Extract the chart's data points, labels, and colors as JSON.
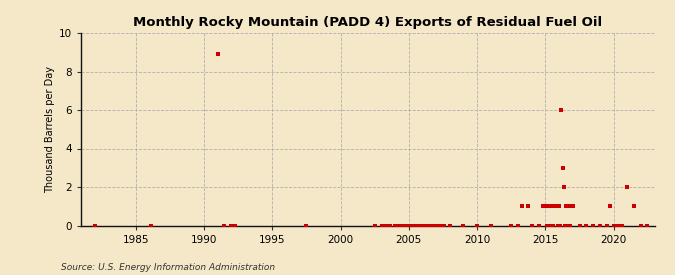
{
  "title": "Monthly Rocky Mountain (PADD 4) Exports of Residual Fuel Oil",
  "ylabel": "Thousand Barrels per Day",
  "source": "Source: U.S. Energy Information Administration",
  "background_color": "#f5e8c8",
  "plot_background_color": "#f5e8c8",
  "marker_color": "#cc0000",
  "marker_size": 5,
  "xlim": [
    1981,
    2023
  ],
  "ylim": [
    0,
    10
  ],
  "yticks": [
    0,
    2,
    4,
    6,
    8,
    10
  ],
  "xticks": [
    1985,
    1990,
    1995,
    2000,
    2005,
    2010,
    2015,
    2020
  ],
  "data_points": [
    [
      1982.0,
      0.0
    ],
    [
      1986.1,
      0.0
    ],
    [
      1991.0,
      8.9
    ],
    [
      1991.5,
      0.0
    ],
    [
      1992.0,
      0.0
    ],
    [
      1992.3,
      0.0
    ],
    [
      1997.5,
      0.0
    ],
    [
      2002.5,
      0.0
    ],
    [
      2003.0,
      0.0
    ],
    [
      2003.3,
      0.0
    ],
    [
      2003.6,
      0.0
    ],
    [
      2004.0,
      0.0
    ],
    [
      2004.2,
      0.0
    ],
    [
      2004.5,
      0.0
    ],
    [
      2004.8,
      0.0
    ],
    [
      2005.0,
      0.0
    ],
    [
      2005.2,
      0.0
    ],
    [
      2005.5,
      0.0
    ],
    [
      2005.8,
      0.0
    ],
    [
      2006.0,
      0.0
    ],
    [
      2006.2,
      0.0
    ],
    [
      2006.5,
      0.0
    ],
    [
      2006.8,
      0.0
    ],
    [
      2007.0,
      0.0
    ],
    [
      2007.3,
      0.0
    ],
    [
      2007.6,
      0.0
    ],
    [
      2008.0,
      0.0
    ],
    [
      2009.0,
      0.0
    ],
    [
      2010.0,
      0.0
    ],
    [
      2011.0,
      0.0
    ],
    [
      2012.5,
      0.0
    ],
    [
      2013.0,
      0.0
    ],
    [
      2013.3,
      1.0
    ],
    [
      2013.7,
      1.0
    ],
    [
      2014.0,
      0.0
    ],
    [
      2014.5,
      0.0
    ],
    [
      2014.8,
      1.0
    ],
    [
      2015.0,
      1.0
    ],
    [
      2015.08,
      0.0
    ],
    [
      2015.17,
      1.0
    ],
    [
      2015.25,
      1.0
    ],
    [
      2015.33,
      1.0
    ],
    [
      2015.42,
      0.0
    ],
    [
      2015.5,
      1.0
    ],
    [
      2015.58,
      0.0
    ],
    [
      2015.67,
      1.0
    ],
    [
      2015.75,
      1.0
    ],
    [
      2015.83,
      1.0
    ],
    [
      2015.92,
      0.0
    ],
    [
      2016.0,
      1.0
    ],
    [
      2016.08,
      0.0
    ],
    [
      2016.17,
      6.0
    ],
    [
      2016.25,
      3.0
    ],
    [
      2016.33,
      2.0
    ],
    [
      2016.42,
      0.0
    ],
    [
      2016.5,
      1.0
    ],
    [
      2016.58,
      0.0
    ],
    [
      2016.67,
      1.0
    ],
    [
      2016.75,
      1.0
    ],
    [
      2016.83,
      0.0
    ],
    [
      2016.92,
      1.0
    ],
    [
      2017.0,
      1.0
    ],
    [
      2017.5,
      0.0
    ],
    [
      2018.0,
      0.0
    ],
    [
      2018.5,
      0.0
    ],
    [
      2019.0,
      0.0
    ],
    [
      2019.5,
      0.0
    ],
    [
      2019.7,
      1.0
    ],
    [
      2020.0,
      0.0
    ],
    [
      2020.3,
      0.0
    ],
    [
      2020.6,
      0.0
    ],
    [
      2021.0,
      2.0
    ],
    [
      2021.5,
      1.0
    ],
    [
      2022.0,
      0.0
    ],
    [
      2022.4,
      0.0
    ]
  ]
}
